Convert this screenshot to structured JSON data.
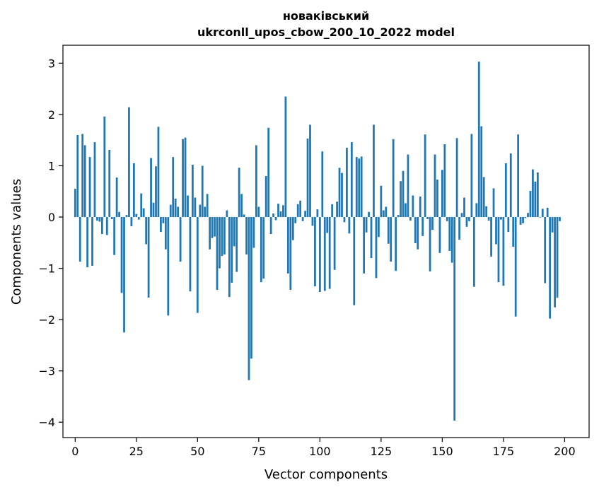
{
  "chart_data": {
    "type": "bar",
    "title_line1": "новаківський",
    "title_line2": "ukrconll_upos_cbow_200_10_2022 model",
    "xlabel": "Vector components",
    "ylabel": "Components values",
    "xlim": [
      -5,
      210
    ],
    "ylim": [
      -4.3,
      3.35
    ],
    "xticks": [
      0,
      25,
      50,
      75,
      100,
      125,
      150,
      175,
      200
    ],
    "yticks": [
      3,
      2,
      1,
      0,
      -1,
      -2,
      -3,
      -4
    ],
    "ytick_labels": [
      "3",
      "2",
      "1",
      "0",
      "−1",
      "−2",
      "−3",
      "−4"
    ],
    "bar_color": "#1f77b4",
    "grid": false,
    "values": [
      0.55,
      1.6,
      -0.87,
      1.62,
      1.4,
      -0.98,
      1.17,
      -0.95,
      1.46,
      -0.07,
      -0.09,
      -0.33,
      1.96,
      -0.35,
      1.31,
      -0.04,
      -0.74,
      0.77,
      0.1,
      -1.48,
      -2.25,
      0.04,
      2.14,
      -0.18,
      1.05,
      0.06,
      -0.05,
      0.46,
      0.17,
      -0.53,
      -1.57,
      1.15,
      0.28,
      0.99,
      1.76,
      -0.29,
      -0.12,
      -0.63,
      -1.92,
      0.24,
      1.17,
      0.36,
      0.2,
      -0.87,
      1.52,
      1.55,
      0.42,
      -1.45,
      1.02,
      0.38,
      -1.87,
      0.24,
      1.0,
      0.2,
      0.45,
      -0.63,
      -0.41,
      -0.38,
      -1.42,
      -1.0,
      -0.76,
      -0.73,
      0.13,
      -1.56,
      -1.28,
      -0.57,
      -1.07,
      0.96,
      0.45,
      0.05,
      -0.73,
      -3.18,
      -2.76,
      -0.6,
      1.4,
      0.2,
      -1.27,
      -1.2,
      0.8,
      1.74,
      -0.33,
      0.07,
      -0.06,
      0.26,
      0.11,
      0.23,
      2.35,
      -1.1,
      -1.42,
      -0.45,
      -0.12,
      0.25,
      0.32,
      -0.08,
      0.12,
      1.53,
      1.8,
      -0.17,
      -1.35,
      0.15,
      -1.46,
      1.28,
      -1.44,
      -0.31,
      -1.4,
      0.25,
      -1.03,
      0.3,
      0.96,
      0.86,
      -0.1,
      1.35,
      -0.32,
      1.46,
      -1.72,
      1.17,
      1.14,
      1.18,
      -1.1,
      -0.3,
      0.1,
      -0.8,
      1.8,
      -1.19,
      -0.39,
      0.61,
      0.13,
      0.2,
      -0.52,
      -0.87,
      1.52,
      -1.05,
      0.04,
      0.7,
      0.9,
      0.27,
      1.22,
      -0.07,
      0.42,
      -0.51,
      -0.63,
      0.4,
      -0.37,
      1.61,
      -0.04,
      -1.06,
      -0.25,
      1.22,
      0.73,
      -0.7,
      0.92,
      1.42,
      -0.08,
      -0.66,
      -0.89,
      -3.97,
      1.54,
      -0.44,
      0.08,
      0.38,
      -0.19,
      -0.08,
      1.62,
      -1.36,
      0.27,
      3.03,
      1.77,
      0.78,
      0.21,
      -0.07,
      -0.77,
      0.56,
      -0.53,
      -1.27,
      -0.05,
      -1.34,
      1.05,
      -0.29,
      1.24,
      -0.58,
      -1.94,
      1.61,
      -0.15,
      -0.12,
      -0.02,
      0.08,
      0.51,
      0.93,
      0.69,
      0.87,
      -0.01,
      0.16,
      -1.29,
      0.18,
      -1.98,
      -0.3,
      -1.76,
      -1.57,
      -0.08
    ]
  }
}
